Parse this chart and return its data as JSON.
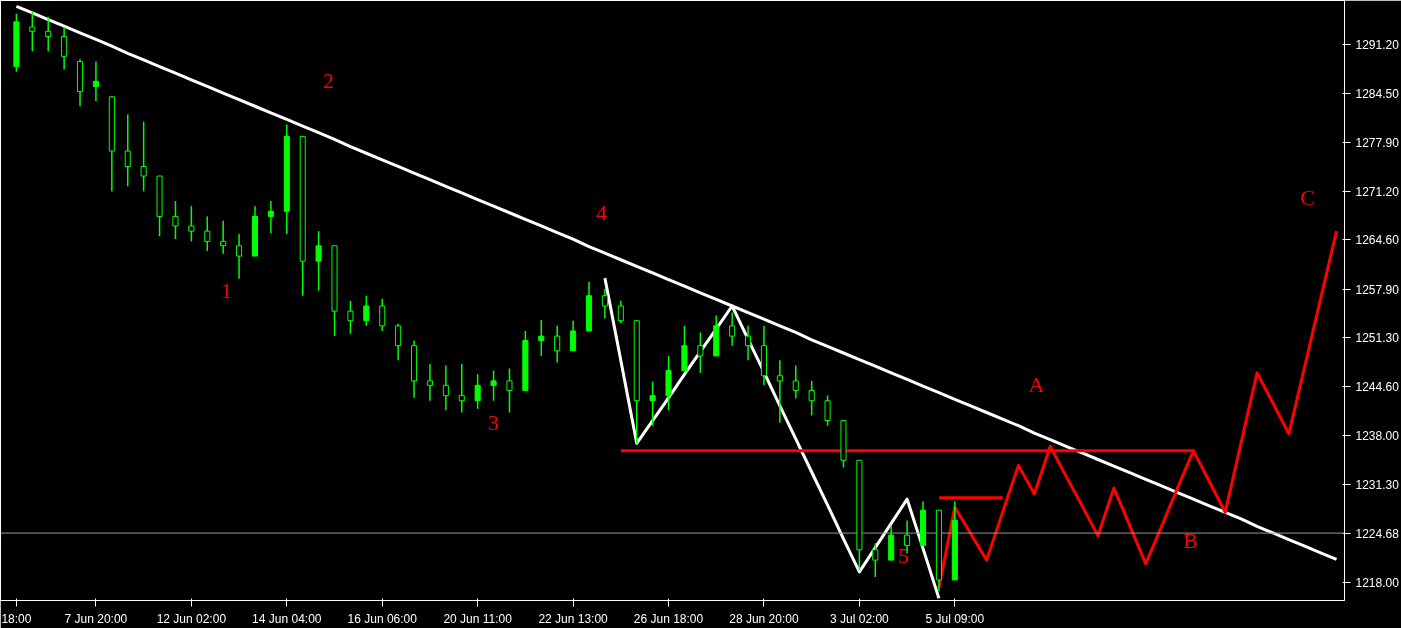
{
  "chart_data": {
    "type": "candlestick",
    "color": "#00ff00",
    "categories": [
      "18:00",
      null,
      null,
      null,
      null,
      "7 Jun 20:00",
      null,
      null,
      null,
      null,
      null,
      "12 Jun 02:00",
      null,
      null,
      null,
      null,
      null,
      "14 Jun 04:00",
      null,
      null,
      null,
      null,
      null,
      "16 Jun 06:00",
      null,
      null,
      null,
      null,
      null,
      "20 Jun 11:00",
      null,
      null,
      null,
      null,
      null,
      "22 Jun 13:00",
      null,
      null,
      null,
      null,
      null,
      "26 Jun 18:00",
      null,
      null,
      null,
      null,
      null,
      "28 Jun 20:00",
      null,
      null,
      null,
      null,
      null,
      "3 Jul 02:00",
      null,
      null,
      null,
      null,
      null,
      "5 Jul 09:00",
      null,
      null,
      null,
      null,
      null,
      null,
      null,
      null,
      null,
      null,
      null,
      null,
      null,
      null,
      null,
      null,
      null,
      null,
      null,
      null,
      null,
      null,
      null,
      null
    ],
    "ohlc": [
      [
        1288.2,
        1295.4,
        1287.5,
        1294.3
      ],
      [
        1293.6,
        1295.7,
        1290.3,
        1293.0
      ],
      [
        1293.0,
        1295.0,
        1290.3,
        1292.3
      ],
      [
        1292.3,
        1293.6,
        1287.8,
        1289.6
      ],
      [
        1288.9,
        1289.2,
        1282.8,
        1284.8
      ],
      [
        1285.5,
        1288.9,
        1283.5,
        1286.2
      ],
      [
        1284.1,
        1284.1,
        1271.2,
        1276.7
      ],
      [
        1276.7,
        1281.7,
        1271.9,
        1274.6
      ],
      [
        1274.6,
        1280.7,
        1271.2,
        1273.3
      ],
      [
        1273.3,
        1273.3,
        1265.1,
        1267.8
      ],
      [
        1267.8,
        1269.9,
        1264.7,
        1266.5
      ],
      [
        1266.5,
        1269.2,
        1264.4,
        1265.8
      ],
      [
        1265.8,
        1267.8,
        1263.1,
        1264.4
      ],
      [
        1264.4,
        1267.2,
        1262.7,
        1263.8
      ],
      [
        1263.8,
        1265.4,
        1259.3,
        1262.4
      ],
      [
        1262.4,
        1269.2,
        1262.4,
        1267.8
      ],
      [
        1267.8,
        1269.9,
        1265.5,
        1268.5
      ],
      [
        1268.5,
        1280.3,
        1265.4,
        1278.7
      ],
      [
        1278.7,
        1278.7,
        1257.0,
        1261.7
      ],
      [
        1261.7,
        1265.8,
        1257.7,
        1263.8
      ],
      [
        1263.8,
        1263.8,
        1251.5,
        1254.9
      ],
      [
        1254.9,
        1256.3,
        1251.8,
        1253.6
      ],
      [
        1253.6,
        1257.0,
        1252.9,
        1255.6
      ],
      [
        1255.6,
        1256.6,
        1252.2,
        1252.9
      ],
      [
        1252.9,
        1253.2,
        1248.2,
        1250.2
      ],
      [
        1250.2,
        1250.9,
        1243.1,
        1245.4
      ],
      [
        1245.4,
        1247.7,
        1242.7,
        1244.8
      ],
      [
        1244.8,
        1247.5,
        1241.4,
        1243.4
      ],
      [
        1243.4,
        1247.7,
        1241.1,
        1242.7
      ],
      [
        1242.7,
        1246.3,
        1241.6,
        1244.8
      ],
      [
        1244.8,
        1246.8,
        1242.7,
        1245.4
      ],
      [
        1245.4,
        1247.1,
        1241.1,
        1244.1
      ],
      [
        1244.1,
        1252.2,
        1244.1,
        1250.9
      ],
      [
        1250.9,
        1253.7,
        1248.8,
        1251.5
      ],
      [
        1251.5,
        1252.9,
        1247.9,
        1249.5
      ],
      [
        1249.5,
        1253.6,
        1249.5,
        1252.2
      ],
      [
        1252.2,
        1258.9,
        1252.2,
        1257.0
      ],
      [
        1257.0,
        1257.9,
        1253.9,
        1255.6
      ],
      [
        1255.6,
        1256.3,
        1253.3,
        1253.6
      ],
      [
        1253.6,
        1253.6,
        1236.9,
        1242.7
      ],
      [
        1242.7,
        1245.3,
        1239.3,
        1243.4
      ],
      [
        1243.4,
        1248.8,
        1241.4,
        1246.8
      ],
      [
        1246.8,
        1252.9,
        1246.8,
        1250.2
      ],
      [
        1250.2,
        1252.0,
        1246.5,
        1248.8
      ],
      [
        1248.8,
        1254.3,
        1248.8,
        1252.9
      ],
      [
        1252.9,
        1254.7,
        1250.2,
        1251.5
      ],
      [
        1251.5,
        1252.9,
        1248.2,
        1250.2
      ],
      [
        1250.2,
        1252.9,
        1244.8,
        1246.1
      ],
      [
        1246.1,
        1248.2,
        1239.7,
        1245.4
      ],
      [
        1245.4,
        1247.5,
        1243.0,
        1244.1
      ],
      [
        1244.1,
        1245.4,
        1240.7,
        1242.7
      ],
      [
        1242.7,
        1243.4,
        1239.3,
        1240.0
      ],
      [
        1240.0,
        1240.0,
        1233.6,
        1234.6
      ],
      [
        1234.6,
        1234.6,
        1219.6,
        1222.4
      ],
      [
        1222.4,
        1223.3,
        1218.7,
        1221.0
      ],
      [
        1221.0,
        1225.7,
        1221.0,
        1224.4
      ],
      [
        1224.4,
        1226.4,
        1221.9,
        1223.0
      ],
      [
        1223.0,
        1229.0,
        1223.0,
        1227.8
      ],
      [
        1227.8,
        1227.8,
        1216.8,
        1218.3
      ],
      [
        1218.3,
        1229.0,
        1218.3,
        1226.4
      ],
      null,
      null,
      null,
      null,
      null,
      null,
      null,
      null,
      null,
      null,
      null,
      null,
      null,
      null,
      null,
      null,
      null,
      null,
      null,
      null,
      null,
      null,
      null,
      null
    ],
    "series": [
      {
        "type": "line",
        "color": "#ffffff",
        "values": [
          1296.4,
          1295.5,
          1294.6,
          1293.7,
          1292.8,
          1291.9,
          1291.0,
          1290.0,
          1289.1,
          1288.2,
          1287.3,
          1286.4,
          1285.5,
          1284.6,
          1283.7,
          1282.8,
          1281.9,
          1281.0,
          1280.1,
          1279.2,
          1278.3,
          1277.3,
          1276.4,
          1275.5,
          1274.6,
          1273.7,
          1272.8,
          1271.9,
          1271.0,
          1270.1,
          1269.2,
          1268.3,
          1267.4,
          1266.5,
          1265.6,
          1264.7,
          1263.7,
          1262.8,
          1261.9,
          1261.0,
          1260.1,
          1259.2,
          1258.3,
          1257.4,
          1256.5,
          1255.6,
          1254.7,
          1253.8,
          1252.9,
          1252.0,
          1251.0,
          1250.1,
          1249.2,
          1248.3,
          1247.4,
          1246.5,
          1245.6,
          1244.7,
          1243.8,
          1242.9,
          1242.0,
          1241.1,
          1240.2,
          1239.3,
          1238.3,
          1237.4,
          1236.5,
          1235.6,
          1234.7,
          1233.8,
          1232.9,
          1232.0,
          1231.1,
          1230.2,
          1229.3,
          1228.4,
          1227.5,
          1226.6,
          1225.6,
          1224.7,
          1223.8,
          1222.9,
          1222.0,
          1221.1
        ]
      },
      {
        "type": "line",
        "color": "#ffffff",
        "values": [
          null,
          null,
          null,
          null,
          null,
          null,
          null,
          null,
          null,
          null,
          null,
          null,
          null,
          null,
          null,
          null,
          null,
          null,
          null,
          null,
          null,
          null,
          null,
          null,
          null,
          null,
          null,
          null,
          null,
          null,
          null,
          null,
          null,
          null,
          null,
          null,
          null,
          1259.4,
          1248.2,
          1236.9,
          1240.0,
          1243.1,
          1246.3,
          1249.4,
          1252.5,
          1255.6,
          1251.1,
          1246.6,
          1242.0,
          1237.5,
          1233.0,
          1228.5,
          1223.9,
          1219.4,
          1222.7,
          1226.0,
          1229.3,
          1222.6,
          1215.8,
          null,
          null,
          null,
          null,
          null,
          null,
          null,
          null,
          null,
          null,
          null,
          null,
          null,
          null,
          null,
          null,
          null,
          null,
          null,
          null,
          null,
          null,
          null,
          null,
          null
        ]
      },
      {
        "type": "line",
        "color": "#ff0000",
        "values": [
          null,
          null,
          null,
          null,
          null,
          null,
          null,
          null,
          null,
          null,
          null,
          null,
          null,
          null,
          null,
          null,
          null,
          null,
          null,
          null,
          null,
          null,
          null,
          null,
          null,
          null,
          null,
          null,
          null,
          null,
          null,
          null,
          null,
          null,
          null,
          null,
          null,
          null,
          1235.9,
          1235.9,
          1235.9,
          1235.9,
          1235.9,
          1235.9,
          1235.9,
          1235.9,
          1235.9,
          1235.9,
          1235.9,
          1235.9,
          1235.9,
          1235.9,
          1235.9,
          1235.9,
          1235.9,
          1235.9,
          1235.9,
          1235.9,
          1235.9,
          1235.9,
          1235.9,
          1235.9,
          1235.9,
          1235.9,
          1235.9,
          1235.9,
          1235.9,
          1235.9,
          1235.9,
          1235.9,
          1235.9,
          1235.9,
          1235.9,
          1235.9,
          1235.9,
          null,
          null,
          null,
          null,
          null,
          null,
          null,
          null,
          null
        ]
      },
      {
        "type": "line",
        "color": "#ff0000",
        "values": [
          null,
          null,
          null,
          null,
          null,
          null,
          null,
          null,
          null,
          null,
          null,
          null,
          null,
          null,
          null,
          null,
          null,
          null,
          null,
          null,
          null,
          null,
          null,
          null,
          null,
          null,
          null,
          null,
          null,
          null,
          null,
          null,
          null,
          null,
          null,
          null,
          null,
          null,
          null,
          null,
          null,
          null,
          null,
          null,
          null,
          null,
          null,
          null,
          null,
          null,
          null,
          null,
          null,
          null,
          null,
          null,
          null,
          null,
          1229.5,
          1229.5,
          1229.5,
          1229.5,
          1229.5,
          null,
          null,
          null,
          null,
          null,
          null,
          null,
          null,
          null,
          null,
          null,
          null,
          null,
          null,
          null,
          null,
          null,
          null,
          null,
          null,
          null
        ]
      },
      {
        "type": "line",
        "color": "#ff0000",
        "values": [
          null,
          null,
          null,
          null,
          null,
          null,
          null,
          null,
          null,
          null,
          null,
          null,
          null,
          null,
          null,
          null,
          null,
          null,
          null,
          null,
          null,
          null,
          null,
          null,
          null,
          null,
          null,
          null,
          null,
          null,
          null,
          null,
          null,
          null,
          null,
          null,
          null,
          null,
          null,
          null,
          null,
          null,
          null,
          null,
          null,
          null,
          null,
          null,
          null,
          null,
          null,
          null,
          null,
          null,
          null,
          null,
          null,
          null,
          1217.2,
          1228.2,
          1224.6,
          1221.0,
          1227.5,
          1233.9,
          1230.0,
          1236.5,
          1232.4,
          1228.4,
          1224.3,
          1230.8,
          1225.7,
          1220.5,
          1225.6,
          1230.8,
          1235.9,
          1231.7,
          1227.5,
          1237.0,
          1246.5,
          1242.4,
          1238.2,
          1247.4,
          1256.6,
          1265.8
        ]
      }
    ],
    "annotations": [
      "1",
      "2",
      "3",
      "4",
      "5",
      "A",
      "B",
      "C"
    ],
    "ref_lines": [
      {
        "axis": "y",
        "value": 1224.68,
        "label": "1224.68",
        "color": "#8c9aa6"
      }
    ],
    "ylim": [
      1215.5,
      1297.2
    ],
    "yticks": [
      {
        "value": 1218,
        "label": "1218.00"
      },
      {
        "value": 1231.3,
        "label": "1231.30"
      },
      {
        "value": 1238,
        "label": "1238.00"
      },
      {
        "value": 1244.6,
        "label": "1244.60"
      },
      {
        "value": 1251.3,
        "label": "1251.30"
      },
      {
        "value": 1257.9,
        "label": "1257.90"
      },
      {
        "value": 1264.6,
        "label": "1264.60"
      },
      {
        "value": 1271.2,
        "label": "1271.20"
      },
      {
        "value": 1277.9,
        "label": "1277.90"
      },
      {
        "value": 1284.5,
        "label": "1284.50"
      },
      {
        "value": 1291.2,
        "label": "1291.20"
      }
    ],
    "grid": false
  }
}
